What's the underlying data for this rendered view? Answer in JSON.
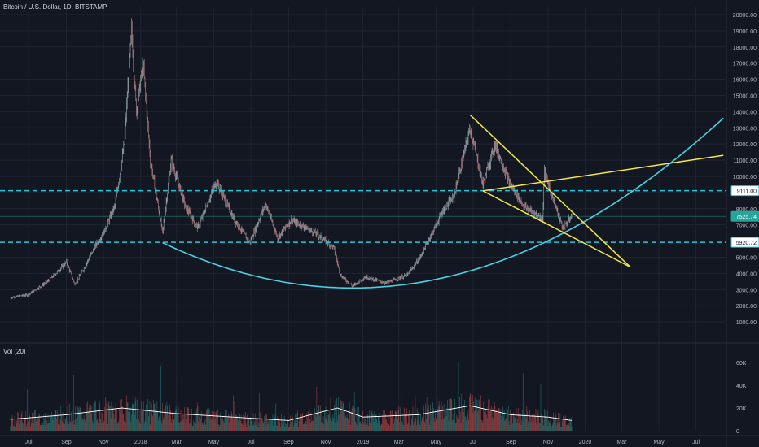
{
  "header": {
    "title": "Bitcoin / U.S. Dollar, 1D, BITSTAMP"
  },
  "volume_pane": {
    "label": "Vol (20)",
    "y_ticks": [
      "0",
      "20K",
      "40K",
      "60K"
    ]
  },
  "colors": {
    "background": "#131722",
    "grid": "#1f2431",
    "up": "#26a69a",
    "down": "#ef5350",
    "candle_muted_up": "#8f9fa6",
    "candle_muted_down": "#a87a7c",
    "support_line": "#26c6da",
    "arc": "#4dd0e1",
    "trendline": "#f5e64a",
    "volume_ma": "#ffffff",
    "axis_text": "#b2b5be"
  },
  "price_axis": {
    "ticks": [
      "1000.00",
      "2000.00",
      "3000.00",
      "4000.00",
      "5000.00",
      "6000.00",
      "7000.00",
      "8000.00",
      "9000.00",
      "10000.00",
      "11000.00",
      "12000.00",
      "13000.00",
      "14000.00",
      "15000.00",
      "16000.00",
      "17000.00",
      "18000.00",
      "19000.00",
      "20000.00"
    ],
    "badges": [
      {
        "label": "9111.00",
        "value": 9111,
        "style": "line"
      },
      {
        "label": "7525.74",
        "value": 7525.74,
        "style": "price"
      },
      {
        "label": "5920.72",
        "value": 5920.72,
        "style": "line"
      }
    ]
  },
  "time_axis": {
    "labels": [
      "Jul",
      "Sep",
      "Nov",
      "2018",
      "Mar",
      "May",
      "Jul",
      "Sep",
      "Nov",
      "2019",
      "Mar",
      "May",
      "Jul",
      "Sep",
      "Nov",
      "2020",
      "Mar",
      "May",
      "Jul"
    ]
  },
  "chart_data": {
    "type": "line",
    "title": "Bitcoin / U.S. Dollar, 1D, BITSTAMP",
    "x_unit": "month",
    "x_origin_note": "",
    "price_series": {
      "name": "",
      "points": [
        [
          "2017-06",
          2500
        ],
        [
          "2017-07",
          2700
        ],
        [
          "2017-08",
          3500
        ],
        [
          "2017-08-20",
          4200
        ],
        [
          "2017-09",
          4700
        ],
        [
          "2017-09-15",
          3300
        ],
        [
          "2017-10",
          4400
        ],
        [
          "2017-10-20",
          5800
        ],
        [
          "2017-11",
          6500
        ],
        [
          "2017-11-20",
          8200
        ],
        [
          "2017-12-05",
          12000
        ],
        [
          "2017-12-17",
          19000
        ],
        [
          "2017-12-25",
          14000
        ],
        [
          "2018-01-05",
          17000
        ],
        [
          "2018-01-17",
          11000
        ],
        [
          "2018-02-06",
          6500
        ],
        [
          "2018-02-20",
          11000
        ],
        [
          "2018-03-15",
          8200
        ],
        [
          "2018-04-05",
          6800
        ],
        [
          "2018-05-05",
          9700
        ],
        [
          "2018-06-01",
          7500
        ],
        [
          "2018-06-29",
          5900
        ],
        [
          "2018-07-25",
          8300
        ],
        [
          "2018-08-14",
          6200
        ],
        [
          "2018-09-05",
          7300
        ],
        [
          "2018-10-15",
          6500
        ],
        [
          "2018-11-14",
          5600
        ],
        [
          "2018-11-25",
          3900
        ],
        [
          "2018-12-15",
          3200
        ],
        [
          "2019-01-05",
          3800
        ],
        [
          "2019-02-07",
          3400
        ],
        [
          "2019-03-15",
          3900
        ],
        [
          "2019-04-05",
          5000
        ],
        [
          "2019-05-14",
          8000
        ],
        [
          "2019-05-30",
          8700
        ],
        [
          "2019-06-26",
          13000
        ],
        [
          "2019-07-17",
          9500
        ],
        [
          "2019-08-06",
          12000
        ],
        [
          "2019-08-29",
          9600
        ],
        [
          "2019-09-24",
          8100
        ],
        [
          "2019-10-23",
          7400
        ],
        [
          "2019-10-26",
          10300
        ],
        [
          "2019-11-25",
          6800
        ],
        [
          "2019-12-10",
          7525.74
        ]
      ]
    },
    "volume_series": {
      "name": "Vol (20)",
      "points": [
        [
          "2017-06",
          10000
        ],
        [
          "2017-09",
          14000
        ],
        [
          "2017-12",
          20000
        ],
        [
          "2018-03",
          15000
        ],
        [
          "2018-06",
          12000
        ],
        [
          "2018-09",
          9000
        ],
        [
          "2018-11-20",
          20000
        ],
        [
          "2019-01",
          12000
        ],
        [
          "2019-04",
          14000
        ],
        [
          "2019-06-26",
          22000
        ],
        [
          "2019-09",
          14000
        ],
        [
          "2019-11",
          12000
        ],
        [
          "2019-12-10",
          9000
        ]
      ]
    },
    "levels": [
      {
        "value": 9111.0,
        "label": "9111.00"
      },
      {
        "value": 5920.72,
        "label": "5920.72"
      }
    ],
    "trendlines": [
      {
        "from": [
          "2019-06-26",
          13800
        ],
        "to": [
          "2020-03-15",
          4400
        ]
      },
      {
        "from": [
          "2019-07-17",
          9100
        ],
        "to": [
          "2020-03-15",
          4400
        ]
      },
      {
        "from": [
          "2019-07-17",
          9100
        ],
        "to": [
          "2020-08-15",
          11300
        ]
      }
    ],
    "arc": {
      "start": [
        "2018-02-06",
        5900
      ],
      "vertex": [
        "2018-12-15",
        3100
      ],
      "end": [
        "2020-08-15",
        13600
      ]
    },
    "ylim": [
      500,
      20500
    ],
    "xlim": [
      "2017-06",
      "2020-08"
    ],
    "xlabel": "",
    "ylabel": "",
    "grid": true,
    "log_scale": false
  }
}
